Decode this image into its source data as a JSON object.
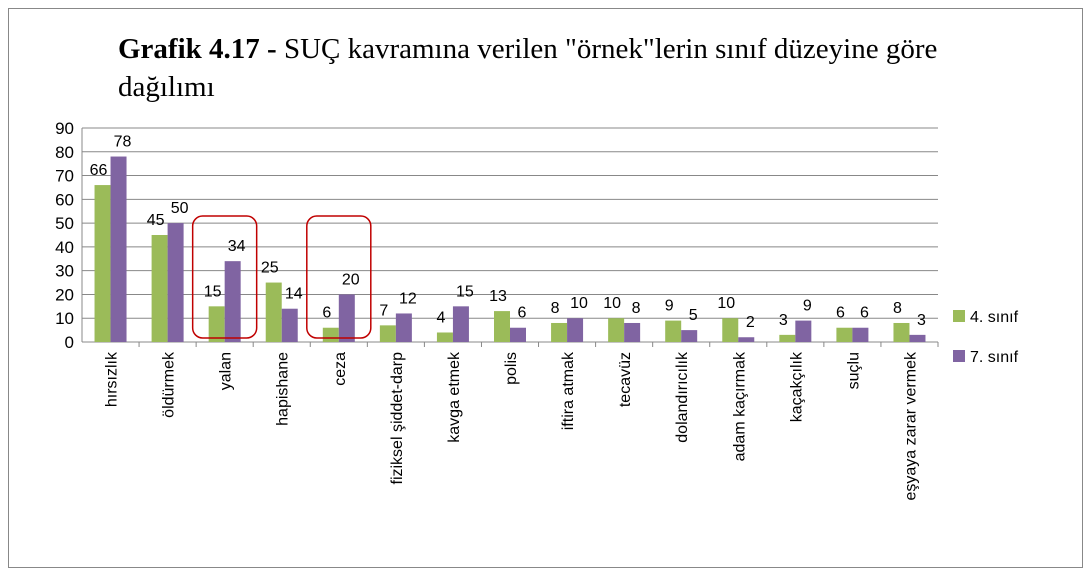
{
  "chart_data": {
    "type": "bar",
    "title_bold": "Grafik 4.17 -",
    "title": "SUÇ kavramına verilen \"örnek\"lerin sınıf düzeyine göre dağılımı",
    "categories": [
      "hırsızlık",
      "öldürmek",
      "yalan",
      "hapishane",
      "ceza",
      "fiziksel şiddet-darp",
      "kavga etmek",
      "polis",
      "iftira atmak",
      "tecavüz",
      "dolandırıcılık",
      "adam kaçırmak",
      "kaçakçılık",
      "suçlu",
      "eşyaya zarar vermek"
    ],
    "series": [
      {
        "name": "4. sınıf",
        "color": "#9bbb59",
        "values": [
          66,
          45,
          15,
          25,
          6,
          7,
          4,
          13,
          8,
          10,
          9,
          10,
          3,
          6,
          8
        ]
      },
      {
        "name": "7. sınıf",
        "color": "#8064a2",
        "values": [
          78,
          50,
          34,
          14,
          20,
          12,
          15,
          6,
          10,
          8,
          5,
          2,
          9,
          6,
          3
        ]
      }
    ],
    "ylim": [
      0,
      90
    ],
    "yticks": [
      0,
      10,
      20,
      30,
      40,
      50,
      60,
      70,
      80,
      90
    ],
    "grid": true,
    "legend": "right",
    "highlight_categories": [
      2,
      4
    ]
  }
}
